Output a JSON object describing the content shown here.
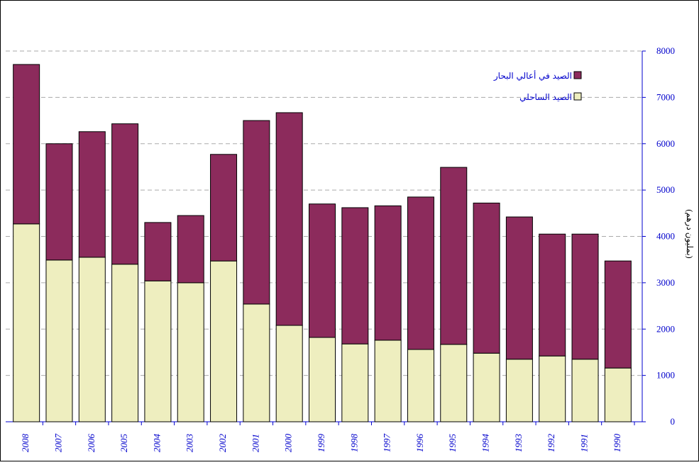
{
  "chart_data": {
    "type": "stacked_bar",
    "categories": [
      "2008",
      "2007",
      "2006",
      "2005",
      "2004",
      "2003",
      "2002",
      "2001",
      "2000",
      "1999",
      "1998",
      "1997",
      "1996",
      "1995",
      "1994",
      "1993",
      "1992",
      "1991",
      "1990"
    ],
    "series": [
      {
        "name": "الصيد الساحلي",
        "color": "#eeeebf",
        "values": [
          4270,
          3490,
          3550,
          3400,
          3040,
          3000,
          3470,
          2540,
          2080,
          1820,
          1680,
          1760,
          1560,
          1670,
          1480,
          1350,
          1420,
          1350,
          1160
        ]
      },
      {
        "name": "الصيد في أعالي البحار",
        "color": "#8c2b5c",
        "values": [
          3440,
          2510,
          2710,
          3030,
          1260,
          1450,
          2300,
          3960,
          4590,
          2880,
          2940,
          2900,
          3290,
          3820,
          3240,
          3070,
          2630,
          2700,
          2310
        ]
      }
    ],
    "y_label": "(بمليون درهم)",
    "ylim": [
      0,
      8000
    ],
    "yticks": [
      0,
      1000,
      2000,
      3000,
      4000,
      5000,
      6000,
      7000,
      8000
    ],
    "grid": true
  }
}
